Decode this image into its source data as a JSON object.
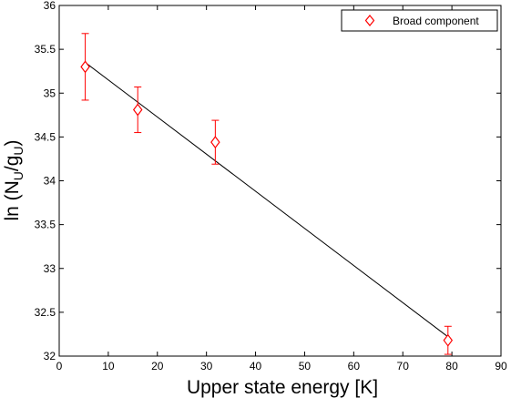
{
  "chart_data": {
    "type": "scatter",
    "title": "",
    "xlabel": "Upper state energy [K]",
    "ylabel": {
      "prefix": "ln (N",
      "sub1": "U",
      "mid": "/g",
      "sub2": "U",
      "suffix": ")"
    },
    "xlim": [
      0,
      90
    ],
    "ylim": [
      32,
      36
    ],
    "xticks": [
      0,
      10,
      20,
      30,
      40,
      50,
      60,
      70,
      80,
      90
    ],
    "yticks": [
      32,
      32.5,
      33,
      33.5,
      34,
      34.5,
      35,
      35.5,
      36
    ],
    "grid": false,
    "legend": {
      "position": "top-right"
    },
    "series": [
      {
        "name": "Broad component",
        "color": "#ff0000",
        "marker": "diamond-open",
        "points": [
          {
            "x": 5.3,
            "y": 35.3,
            "err_low": 0.38,
            "err_high": 0.38
          },
          {
            "x": 16,
            "y": 34.81,
            "err_low": 0.26,
            "err_high": 0.26
          },
          {
            "x": 31.8,
            "y": 34.44,
            "err_low": 0.25,
            "err_high": 0.25
          },
          {
            "x": 79.2,
            "y": 32.18,
            "err_low": 0.16,
            "err_high": 0.16
          }
        ]
      }
    ],
    "fit_line": {
      "color": "#000000",
      "x": [
        5.3,
        79.2
      ],
      "y": [
        35.35,
        32.22
      ]
    }
  }
}
